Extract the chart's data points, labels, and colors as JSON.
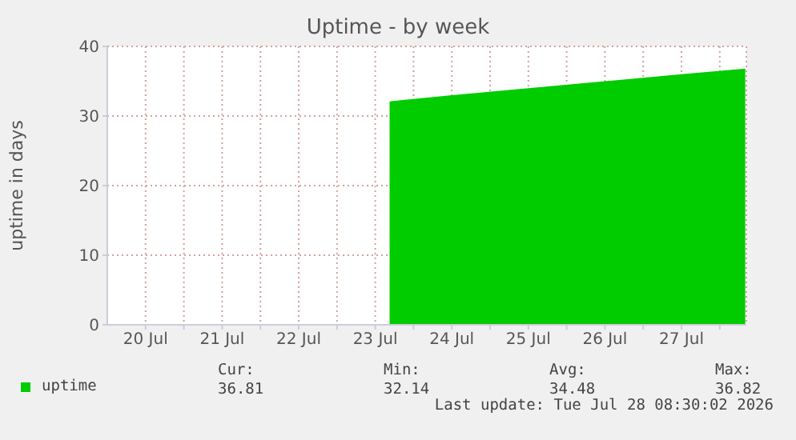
{
  "chart_data": {
    "type": "area",
    "title": "Uptime - by week",
    "ylabel": "uptime in days",
    "xlim": [
      "2026-07-20T00:00",
      "2026-07-28T08:20"
    ],
    "xticks": [
      {
        "value": "2026-07-20T12:00",
        "label": "20 Jul"
      },
      {
        "value": "2026-07-21T00:00",
        "label": null
      },
      {
        "value": "2026-07-21T12:00",
        "label": "21 Jul"
      },
      {
        "value": "2026-07-22T00:00",
        "label": null
      },
      {
        "value": "2026-07-22T12:00",
        "label": "22 Jul"
      },
      {
        "value": "2026-07-23T00:00",
        "label": null
      },
      {
        "value": "2026-07-23T12:00",
        "label": "23 Jul"
      },
      {
        "value": "2026-07-24T00:00",
        "label": null
      },
      {
        "value": "2026-07-24T12:00",
        "label": "24 Jul"
      },
      {
        "value": "2026-07-25T00:00",
        "label": null
      },
      {
        "value": "2026-07-25T12:00",
        "label": "25 Jul"
      },
      {
        "value": "2026-07-26T00:00",
        "label": null
      },
      {
        "value": "2026-07-26T12:00",
        "label": "26 Jul"
      },
      {
        "value": "2026-07-27T00:00",
        "label": null
      },
      {
        "value": "2026-07-27T12:00",
        "label": "27 Jul"
      },
      {
        "value": "2026-07-28T00:00",
        "label": null
      }
    ],
    "ylim": [
      0,
      40
    ],
    "yticks": [
      0,
      10,
      20,
      30,
      40
    ],
    "grid": true,
    "legend": "bottom left",
    "series": [
      {
        "name": "uptime",
        "color": "#00cc00",
        "x": [
          "2026-07-23T16:30",
          "2026-07-24T12:00",
          "2026-07-25T12:00",
          "2026-07-26T12:00",
          "2026-07-27T12:00",
          "2026-07-28T08:00"
        ],
        "values": [
          32.1,
          33.0,
          34.0,
          35.0,
          36.0,
          36.8
        ]
      }
    ],
    "annotations": [
      "Cur:",
      "Min:",
      "Avg:",
      "Max:",
      "36.81",
      "32.14",
      "34.48",
      "36.82",
      "Last update: Tue Jul 28 08:30:02 2026"
    ]
  }
}
